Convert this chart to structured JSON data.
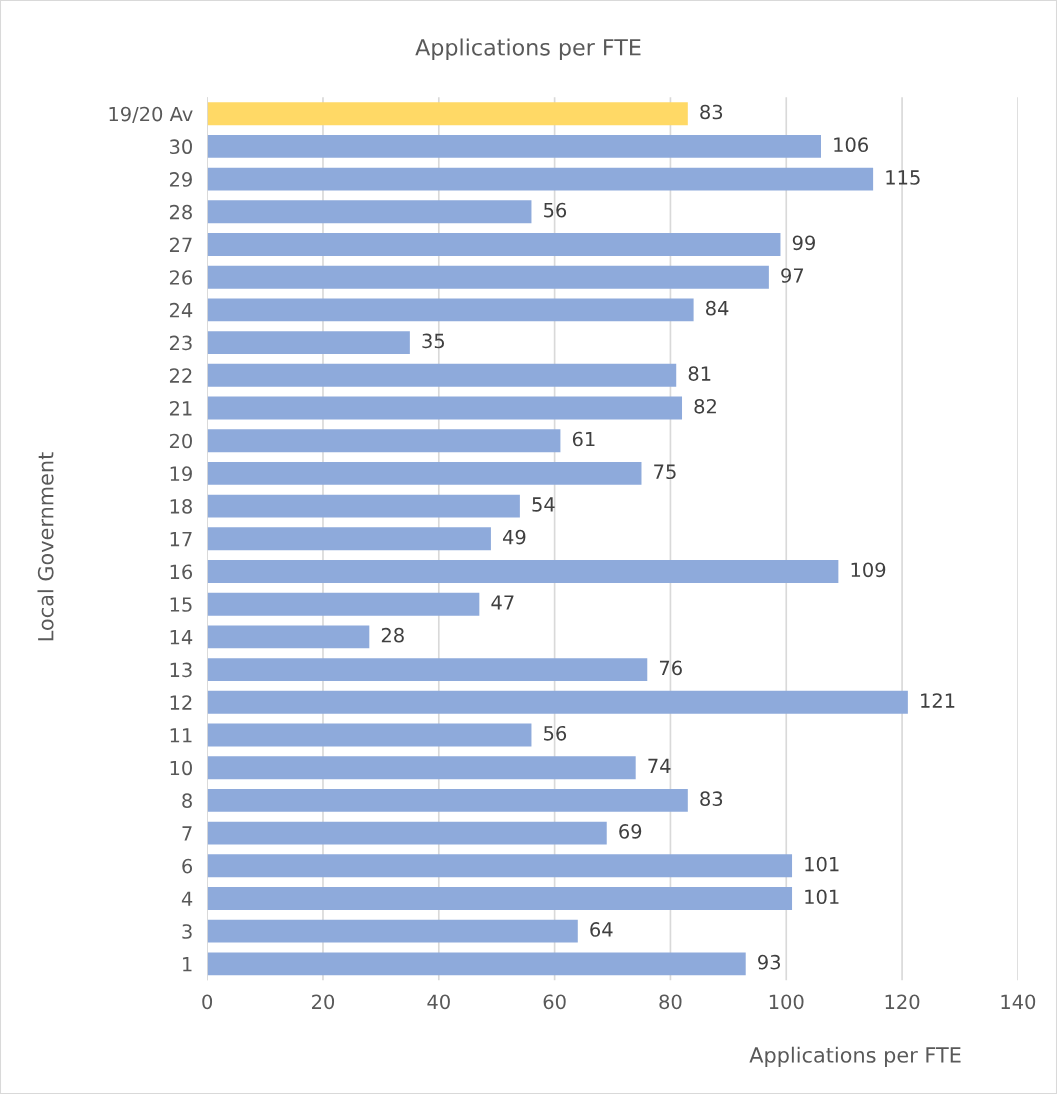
{
  "chart_data": {
    "type": "bar",
    "orientation": "horizontal",
    "title": "Applications per FTE",
    "xlabel": "Applications per FTE",
    "ylabel": "Local Government",
    "categories": [
      "19/20 Av",
      "30",
      "29",
      "28",
      "27",
      "26",
      "24",
      "23",
      "22",
      "21",
      "20",
      "19",
      "18",
      "17",
      "16",
      "15",
      "14",
      "13",
      "12",
      "11",
      "10",
      "8",
      "7",
      "6",
      "4",
      "3",
      "1"
    ],
    "values": [
      83,
      106,
      115,
      56,
      99,
      97,
      84,
      35,
      81,
      82,
      61,
      75,
      54,
      49,
      109,
      47,
      28,
      76,
      121,
      56,
      74,
      83,
      69,
      101,
      101,
      64,
      93
    ],
    "colors": [
      "#ffd966",
      "#8eaadb",
      "#8eaadb",
      "#8eaadb",
      "#8eaadb",
      "#8eaadb",
      "#8eaadb",
      "#8eaadb",
      "#8eaadb",
      "#8eaadb",
      "#8eaadb",
      "#8eaadb",
      "#8eaadb",
      "#8eaadb",
      "#8eaadb",
      "#8eaadb",
      "#8eaadb",
      "#8eaadb",
      "#8eaadb",
      "#8eaadb",
      "#8eaadb",
      "#8eaadb",
      "#8eaadb",
      "#8eaadb",
      "#8eaadb",
      "#8eaadb",
      "#8eaadb"
    ],
    "xlim": [
      0,
      140
    ],
    "xticks": [
      0,
      20,
      40,
      60,
      80,
      100,
      120,
      140
    ],
    "grid": "x",
    "data_labels": true
  }
}
